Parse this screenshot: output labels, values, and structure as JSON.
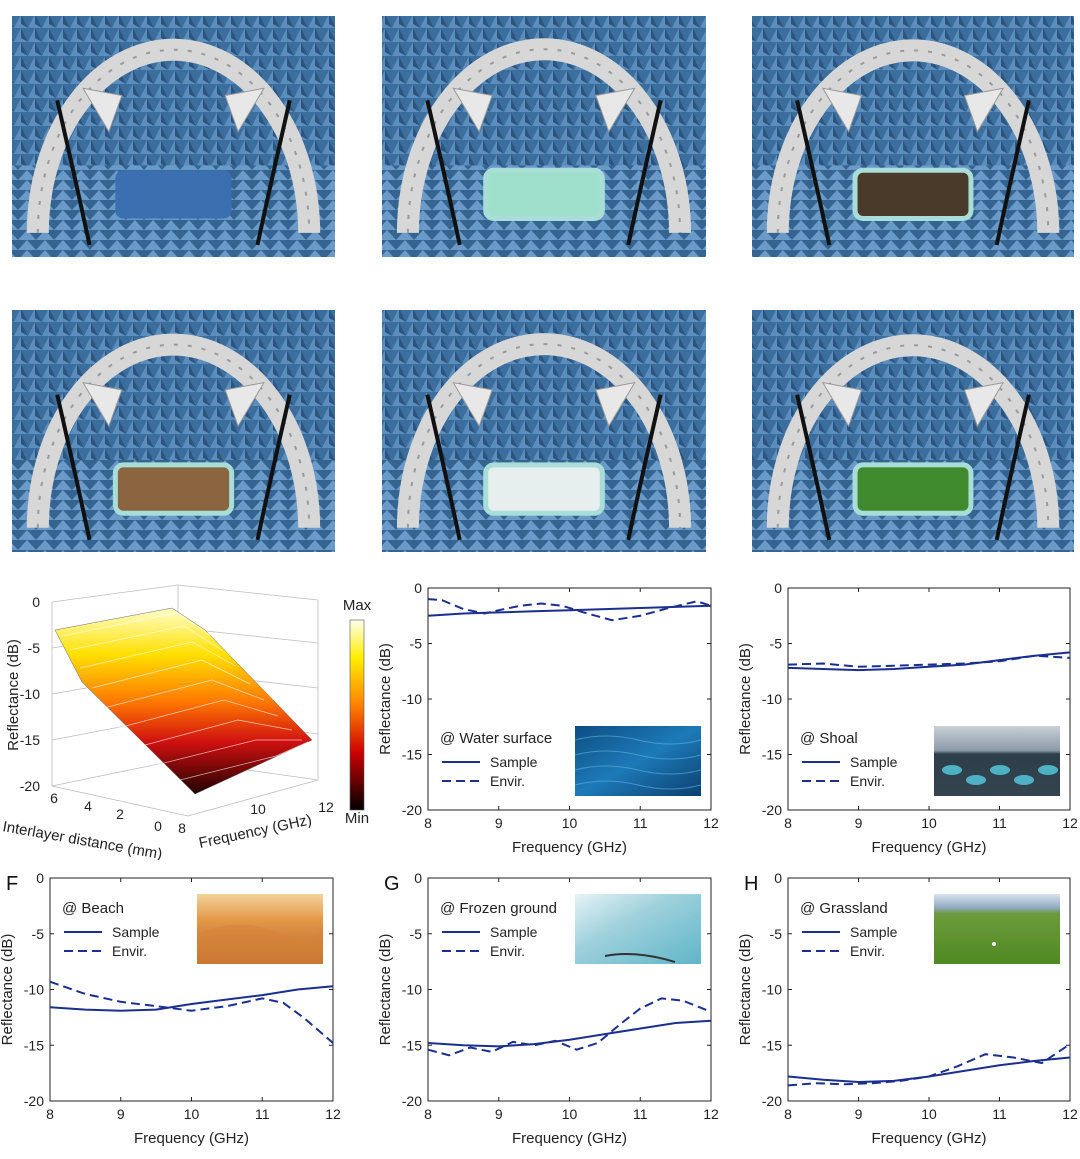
{
  "photos": [
    {
      "name": "photo-empty-chamber",
      "sample": "blue-plate"
    },
    {
      "name": "photo-water-surface",
      "sample": "water"
    },
    {
      "name": "photo-shoal",
      "sample": "mud"
    },
    {
      "name": "photo-beach",
      "sample": "sand"
    },
    {
      "name": "photo-frozen-ground",
      "sample": "ice"
    },
    {
      "name": "photo-grassland",
      "sample": "grass"
    }
  ],
  "colors": {
    "line": "#1a2f8f",
    "absorber": "#3e6e9e",
    "arch": "#d7d7d7",
    "tray": "#a8ddd8"
  },
  "legend_labels": {
    "sample": "Sample",
    "envir": "Envir."
  },
  "surface_panel": {
    "zlabel": "Reflectance (dB)",
    "ylabel": "Interlayer distance (mm)",
    "xlabel": "Frequency (GHz)",
    "colorbar": {
      "max": "Max",
      "min": "Min"
    },
    "zticks": [
      "0",
      "-5",
      "-10",
      "-15",
      "-20"
    ],
    "yticks": [
      "6",
      "4",
      "2",
      "0"
    ],
    "xticks": [
      "8",
      "10",
      "12"
    ]
  },
  "chart_data": [
    {
      "type": "line",
      "panel_letter": "",
      "annotation": "@ Water surface",
      "inset": "water",
      "xlabel": "Frequency (GHz)",
      "ylabel": "Reflectance (dB)",
      "xlim": [
        8,
        12
      ],
      "ylim": [
        -20,
        0
      ],
      "xticks": [
        "8",
        "9",
        "10",
        "11",
        "12"
      ],
      "yticks": [
        "0",
        "-5",
        "-10",
        "-15",
        "-20"
      ],
      "series": [
        {
          "name": "Sample",
          "style": "solid",
          "x": [
            8,
            8.5,
            9,
            9.5,
            10,
            10.5,
            11,
            11.5,
            12
          ],
          "y": [
            -2.5,
            -2.3,
            -2.2,
            -2.1,
            -2.0,
            -1.9,
            -1.8,
            -1.7,
            -1.6
          ]
        },
        {
          "name": "Envir.",
          "style": "dashed",
          "x": [
            8,
            8.2,
            8.5,
            8.8,
            9,
            9.3,
            9.6,
            9.9,
            10.2,
            10.6,
            11,
            11.4,
            11.8,
            12
          ],
          "y": [
            -1.0,
            -1.1,
            -1.9,
            -2.3,
            -2.0,
            -1.6,
            -1.4,
            -1.6,
            -2.2,
            -2.9,
            -2.5,
            -1.8,
            -1.2,
            -1.6
          ]
        }
      ]
    },
    {
      "type": "line",
      "panel_letter": "",
      "annotation": "@ Shoal",
      "inset": "shoal",
      "xlabel": "Frequency (GHz)",
      "ylabel": "Reflectance (dB)",
      "xlim": [
        8,
        12
      ],
      "ylim": [
        -20,
        0
      ],
      "xticks": [
        "8",
        "9",
        "10",
        "11",
        "12"
      ],
      "yticks": [
        "0",
        "-5",
        "-10",
        "-15",
        "-20"
      ],
      "series": [
        {
          "name": "Sample",
          "style": "solid",
          "x": [
            8,
            8.5,
            9,
            9.5,
            10,
            10.5,
            11,
            11.5,
            12
          ],
          "y": [
            -7.2,
            -7.3,
            -7.4,
            -7.3,
            -7.1,
            -6.9,
            -6.5,
            -6.1,
            -5.8
          ]
        },
        {
          "name": "Envir.",
          "style": "dashed",
          "x": [
            8,
            8.5,
            9,
            9.5,
            10,
            10.5,
            11,
            11.5,
            12
          ],
          "y": [
            -6.9,
            -6.8,
            -7.1,
            -7.0,
            -6.9,
            -6.8,
            -6.6,
            -6.1,
            -6.3
          ]
        }
      ]
    },
    {
      "type": "line",
      "panel_letter": "F",
      "annotation": "@ Beach",
      "inset": "beach",
      "xlabel": "Frequency (GHz)",
      "ylabel": "Reflectance (dB)",
      "xlim": [
        8,
        12
      ],
      "ylim": [
        -20,
        0
      ],
      "xticks": [
        "8",
        "9",
        "10",
        "11",
        "12"
      ],
      "yticks": [
        "0",
        "-5",
        "-10",
        "-15",
        "-20"
      ],
      "series": [
        {
          "name": "Sample",
          "style": "solid",
          "x": [
            8,
            8.5,
            9,
            9.5,
            10,
            10.5,
            11,
            11.5,
            12
          ],
          "y": [
            -11.6,
            -11.8,
            -11.9,
            -11.8,
            -11.3,
            -10.9,
            -10.5,
            -10.0,
            -9.7
          ]
        },
        {
          "name": "Envir.",
          "style": "dashed",
          "x": [
            8,
            8.5,
            9,
            9.5,
            10,
            10.5,
            11,
            11.3,
            11.6,
            12
          ],
          "y": [
            -9.3,
            -10.4,
            -11.1,
            -11.5,
            -11.9,
            -11.5,
            -10.8,
            -11.2,
            -12.6,
            -14.8
          ]
        }
      ]
    },
    {
      "type": "line",
      "panel_letter": "G",
      "annotation": "@ Frozen ground",
      "inset": "frozen",
      "xlabel": "Frequency (GHz)",
      "ylabel": "Reflectance (dB)",
      "xlim": [
        8,
        12
      ],
      "ylim": [
        -20,
        0
      ],
      "xticks": [
        "8",
        "9",
        "10",
        "11",
        "12"
      ],
      "yticks": [
        "0",
        "-5",
        "-10",
        "-15",
        "-20"
      ],
      "series": [
        {
          "name": "Sample",
          "style": "solid",
          "x": [
            8,
            8.5,
            9,
            9.5,
            10,
            10.5,
            11,
            11.5,
            12
          ],
          "y": [
            -14.8,
            -15.0,
            -15.1,
            -14.9,
            -14.5,
            -14.0,
            -13.5,
            -13.0,
            -12.8
          ]
        },
        {
          "name": "Envir.",
          "style": "dashed",
          "x": [
            8,
            8.3,
            8.6,
            8.9,
            9.2,
            9.5,
            9.8,
            10.1,
            10.4,
            10.7,
            11,
            11.3,
            11.6,
            12
          ],
          "y": [
            -15.4,
            -15.9,
            -15.2,
            -15.6,
            -14.7,
            -15.0,
            -14.6,
            -15.4,
            -14.8,
            -13.2,
            -11.7,
            -10.8,
            -11.0,
            -12.0
          ]
        }
      ]
    },
    {
      "type": "line",
      "panel_letter": "H",
      "annotation": "@ Grassland",
      "inset": "grass",
      "xlabel": "Frequency (GHz)",
      "ylabel": "Reflectance (dB)",
      "xlim": [
        8,
        12
      ],
      "ylim": [
        -20,
        0
      ],
      "xticks": [
        "8",
        "9",
        "10",
        "11",
        "12"
      ],
      "yticks": [
        "0",
        "-5",
        "-10",
        "-15",
        "-20"
      ],
      "series": [
        {
          "name": "Sample",
          "style": "solid",
          "x": [
            8,
            8.5,
            9,
            9.5,
            10,
            10.5,
            11,
            11.5,
            12
          ],
          "y": [
            -17.8,
            -18.1,
            -18.3,
            -18.2,
            -17.8,
            -17.3,
            -16.8,
            -16.4,
            -16.1
          ]
        },
        {
          "name": "Envir.",
          "style": "dashed",
          "x": [
            8,
            8.4,
            8.8,
            9.2,
            9.6,
            10,
            10.4,
            10.8,
            11.2,
            11.6,
            12
          ],
          "y": [
            -18.6,
            -18.4,
            -18.5,
            -18.4,
            -18.2,
            -17.8,
            -16.9,
            -15.8,
            -16.1,
            -16.6,
            -14.9
          ]
        }
      ]
    }
  ]
}
